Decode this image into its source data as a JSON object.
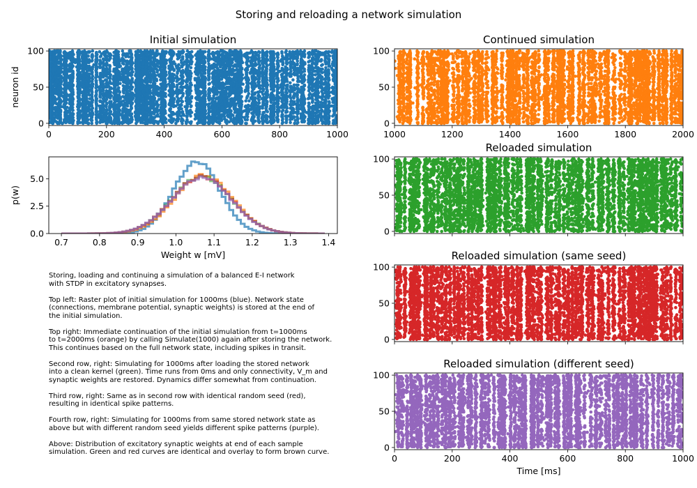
{
  "figure": {
    "suptitle": "Storing and reloading a network simulation"
  },
  "colors": {
    "initial": "#1f77b4",
    "continued": "#ff7f0e",
    "reloaded": "#2ca02c",
    "same_seed": "#d62728",
    "different_seed": "#9467bd",
    "overlay": "#8c564b"
  },
  "chart_data": [
    {
      "type": "scatter",
      "id": "raster-initial",
      "title": "Initial simulation",
      "xlabel": "",
      "ylabel": "neuron id",
      "xlim": [
        0,
        1000
      ],
      "ylim": [
        -3,
        103
      ],
      "xticks": [
        0,
        200,
        400,
        600,
        800,
        1000
      ],
      "yticks": [
        0,
        50,
        100
      ],
      "neurons": [
        0,
        100
      ],
      "burst_centers": [
        3,
        10,
        18,
        26,
        33,
        40,
        55,
        60,
        75,
        83,
        102,
        106,
        118,
        124,
        130,
        138,
        150,
        165,
        179,
        189,
        200,
        212,
        228,
        236,
        243,
        258,
        268,
        274,
        286,
        303,
        310,
        320,
        327,
        336,
        341,
        352,
        364,
        375,
        390,
        396,
        402,
        421,
        430,
        447,
        462,
        479,
        490,
        514,
        523,
        532,
        540,
        555,
        570,
        581,
        589,
        598,
        610,
        617,
        627,
        634,
        645,
        654,
        661,
        666,
        687,
        706,
        714,
        728,
        742,
        754,
        770,
        779,
        793,
        810,
        824,
        838,
        849,
        862,
        876,
        884,
        903,
        914,
        925,
        933,
        945,
        960,
        970,
        986,
        996
      ]
    },
    {
      "type": "scatter",
      "id": "raster-continued",
      "title": "Continued simulation",
      "xlabel": "",
      "ylabel": "",
      "xlim": [
        1000,
        2000
      ],
      "ylim": [
        -3,
        103
      ],
      "xticks": [
        1000,
        1200,
        1400,
        1600,
        1800,
        2000
      ],
      "yticks": [
        0,
        50,
        100
      ],
      "neurons": [
        0,
        100
      ],
      "burst_centers": [
        1018,
        1030,
        1045,
        1054,
        1080,
        1099,
        1117,
        1127,
        1138,
        1150,
        1162,
        1171,
        1182,
        1204,
        1221,
        1236,
        1247,
        1257,
        1277,
        1292,
        1303,
        1320,
        1341,
        1351,
        1373,
        1394,
        1402,
        1410,
        1421,
        1433,
        1448,
        1461,
        1477,
        1485,
        1500,
        1522,
        1532,
        1551,
        1566,
        1574,
        1584,
        1606,
        1617,
        1640,
        1656,
        1674,
        1685,
        1696,
        1714,
        1732,
        1740,
        1760,
        1783,
        1800,
        1814,
        1820,
        1836,
        1842,
        1851,
        1863,
        1871,
        1880,
        1898,
        1916,
        1931,
        1942,
        1960,
        1973,
        1987,
        1997
      ]
    },
    {
      "type": "histogram",
      "id": "weight-distribution",
      "title": "",
      "xlabel": "Weight w [mV]",
      "ylabel": "p(w)",
      "xlim": [
        0.667,
        1.423
      ],
      "ylim": [
        0,
        7.0
      ],
      "xticks": [
        0.7,
        0.8,
        0.9,
        1.0,
        1.1,
        1.2,
        1.3,
        1.4
      ],
      "xtick_labels": [
        "0.7",
        "0.8",
        "0.9",
        "1.0",
        "1.1",
        "1.2",
        "1.3",
        "1.4"
      ],
      "yticks": [
        0.0,
        2.5,
        5.0
      ],
      "ytick_labels": [
        "0.0",
        "2.5",
        "5.0"
      ],
      "bin_range": [
        0.7,
        1.39
      ],
      "series": [
        {
          "color_key": "initial",
          "mean": 1.055,
          "sd": 0.06,
          "peak": 6.6
        },
        {
          "color_key": "continued",
          "mean": 1.072,
          "sd": 0.076,
          "peak": 5.3
        },
        {
          "color_key": "reloaded",
          "mean": 1.068,
          "sd": 0.078,
          "peak": 5.2
        },
        {
          "color_key": "same_seed",
          "mean": 1.068,
          "sd": 0.078,
          "peak": 5.2
        },
        {
          "color_key": "different_seed",
          "mean": 1.067,
          "sd": 0.078,
          "peak": 5.15
        }
      ]
    },
    {
      "type": "scatter",
      "id": "raster-reloaded",
      "title": "Reloaded simulation",
      "xlabel": "",
      "ylabel": "",
      "xlim": [
        0,
        1000
      ],
      "ylim": [
        -3,
        103
      ],
      "xticks": [
        0,
        200,
        400,
        600,
        800,
        1000
      ],
      "yticks": [
        0,
        50,
        100
      ],
      "show_xtick_labels": false,
      "neurons": [
        0,
        100
      ],
      "burst_centers": [
        10,
        18,
        36,
        56,
        66,
        74,
        84,
        106,
        113,
        126,
        136,
        150,
        164,
        178,
        193,
        207,
        219,
        226,
        240,
        256,
        268,
        279,
        290,
        301,
        323,
        331,
        343,
        350,
        365,
        384,
        393,
        410,
        426,
        437,
        460,
        469,
        481,
        498,
        508,
        530,
        543,
        560,
        571,
        588,
        602,
        616,
        628,
        638,
        649,
        671,
        686,
        708,
        719,
        741,
        760,
        780,
        795,
        812,
        822,
        831,
        846,
        853,
        862,
        872,
        881,
        891,
        899,
        908,
        926,
        935,
        944,
        958,
        975,
        994
      ]
    },
    {
      "type": "scatter",
      "id": "raster-same-seed",
      "title": "Reloaded simulation (same seed)",
      "xlabel": "",
      "ylabel": "",
      "xlim": [
        0,
        1000
      ],
      "ylim": [
        -3,
        103
      ],
      "xticks": [
        0,
        200,
        400,
        600,
        800,
        1000
      ],
      "yticks": [
        0,
        50,
        100
      ],
      "show_xtick_labels": false,
      "neurons": [
        0,
        100
      ],
      "burst_centers": [
        10,
        18,
        36,
        56,
        66,
        74,
        84,
        106,
        113,
        126,
        136,
        150,
        164,
        178,
        193,
        207,
        219,
        226,
        240,
        256,
        268,
        279,
        290,
        301,
        323,
        331,
        343,
        350,
        365,
        384,
        393,
        410,
        426,
        437,
        460,
        469,
        481,
        498,
        508,
        530,
        543,
        560,
        571,
        588,
        602,
        616,
        628,
        638,
        649,
        671,
        686,
        708,
        719,
        741,
        760,
        780,
        795,
        812,
        822,
        831,
        846,
        853,
        862,
        872,
        881,
        891,
        899,
        908,
        926,
        935,
        944,
        958,
        975,
        994
      ]
    },
    {
      "type": "scatter",
      "id": "raster-different-seed",
      "title": "Reloaded simulation (different seed)",
      "xlabel": "Time [ms]",
      "ylabel": "",
      "xlim": [
        0,
        1000
      ],
      "ylim": [
        -3,
        103
      ],
      "xticks": [
        0,
        200,
        400,
        600,
        800,
        1000
      ],
      "yticks": [
        0,
        50,
        100
      ],
      "neurons": [
        0,
        100
      ],
      "burst_centers": [
        14,
        26,
        44,
        58,
        68,
        79,
        90,
        110,
        124,
        137,
        150,
        166,
        176,
        192,
        206,
        226,
        236,
        257,
        266,
        282,
        302,
        314,
        326,
        345,
        363,
        372,
        381,
        402,
        417,
        432,
        444,
        453,
        475,
        482,
        497,
        511,
        530,
        541,
        558,
        568,
        588,
        600,
        611,
        630,
        640,
        658,
        681,
        699,
        715,
        733,
        744,
        760,
        774,
        790,
        802,
        819,
        830,
        839,
        856,
        875,
        896,
        914,
        930,
        949,
        966,
        984,
        995
      ]
    }
  ],
  "caption": {
    "p1": [
      "Storing, loading and continuing a simulation of a balanced E-I network",
      "with STDP in excitatory synapses."
    ],
    "p2": [
      "Top left: Raster plot of initial simulation for 1000ms (blue). Network state",
      "(connections, membrane potential, synaptic weights) is stored at the end of",
      "the initial simulation."
    ],
    "p3": [
      "Top right: Immediate continuation of the initial simulation from t=1000ms",
      "to t=2000ms (orange) by calling Simulate(1000) again after storing the network.",
      "This continues based on the full network state, including spikes in transit."
    ],
    "p4": [
      "Second row, right: Simulating for 1000ms after loading the stored network",
      "into a clean kernel (green). Time runs from 0ms and only connectivity, V_m and",
      "synaptic weights are restored. Dynamics differ somewhat from continuation."
    ],
    "p5": [
      "Third row, right: Same as in second row with identical random seed (red),",
      "resulting in identical spike patterns."
    ],
    "p6": [
      "Fourth row, right: Simulating for 1000ms from same stored network state as",
      "above but with different random seed yields different spike patterns (purple)."
    ],
    "p7": [
      "Above: Distribution of excitatory synaptic weights at end of each sample",
      "simulation. Green and red curves are identical and overlay to form brown curve."
    ]
  }
}
